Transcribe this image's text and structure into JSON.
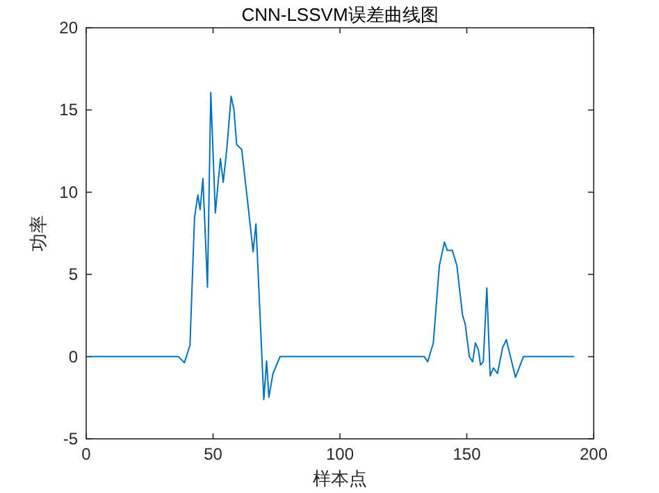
{
  "chart_data": {
    "type": "line",
    "title": "CNN-LSSVM误差曲线图",
    "xlabel": "样本点",
    "ylabel": "功率",
    "color": "#0072bd",
    "x": [
      1,
      36.4,
      38.7,
      40.9,
      42.7,
      44,
      44.9,
      46,
      47.8,
      49.1,
      50.9,
      52.9,
      54,
      55.5,
      57.1,
      58.2,
      59.3,
      61.3,
      63.6,
      65.8,
      66.9,
      67.8,
      70,
      71.1,
      72,
      73.6,
      76.4,
      133.3,
      134.6,
      136.8,
      139.2,
      141.2,
      142.3,
      144.3,
      146.1,
      148.3,
      149.4,
      151,
      152.3,
      153.4,
      154.6,
      155.4,
      156.5,
      157.9,
      159.2,
      160.5,
      162.1,
      164.1,
      165.6,
      166.8,
      169.2,
      172.3,
      192.3
    ],
    "values": [
      0,
      0,
      -0.37,
      0.69,
      8.45,
      9.83,
      8.94,
      10.83,
      4.22,
      16.06,
      8.74,
      12.04,
      10.6,
      12.76,
      15.83,
      15.06,
      12.9,
      12.6,
      9.45,
      6.38,
      8.07,
      5.0,
      -2.61,
      -0.26,
      -2.47,
      -1.03,
      0,
      0,
      -0.31,
      0.83,
      5.54,
      6.97,
      6.46,
      6.46,
      5.54,
      2.54,
      1.97,
      0,
      -0.31,
      0.83,
      0.4,
      -0.51,
      -0.31,
      4.17,
      -1.17,
      -0.69,
      -1.03,
      0.54,
      1.03,
      0.26,
      -1.26,
      0,
      0
    ],
    "xlim": [
      0,
      200
    ],
    "ylim": [
      -5,
      20
    ],
    "xticks": [
      0,
      50,
      100,
      150,
      200
    ],
    "yticks": [
      -5,
      0,
      5,
      10,
      15,
      20
    ],
    "line_style": "solid"
  }
}
